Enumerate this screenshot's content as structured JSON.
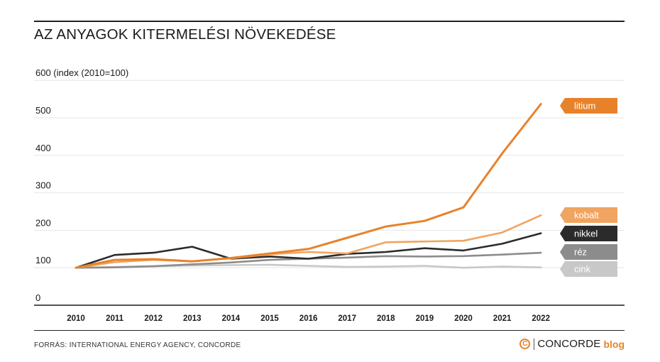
{
  "header": {
    "title": "AZ ANYAGOK KITERMELÉSI NÖVEKEDÉSE"
  },
  "footer": {
    "source": "FORRÁS: INTERNATIONAL ENERGY AGENCY, CONCORDE",
    "brand_logo_glyph": "C",
    "brand_name": "CONCORDE",
    "brand_suffix": "blog"
  },
  "colors": {
    "litium": "#e8822a",
    "kobalt": "#f0a461",
    "nikkel": "#2b2b2b",
    "rez": "#8c8c8c",
    "cink": "#c8c8c8",
    "grid": "#e6e6e6",
    "axis": "#1a1a1a"
  },
  "chart_data": {
    "type": "line",
    "title": "AZ ANYAGOK KITERMELÉSI NÖVEKEDÉSE",
    "ylabel": "(index (2010=100)",
    "xlabel": "",
    "ylim": [
      0,
      600
    ],
    "yticks": [
      0,
      100,
      200,
      300,
      400,
      500,
      600
    ],
    "ytick_labels": [
      "0",
      "100",
      "200",
      "300",
      "400",
      "500",
      "600"
    ],
    "y_top_label_suffix": " (index (2010=100)",
    "grid": true,
    "legend": "right, end-of-line tags",
    "x": [
      "2010",
      "2011",
      "2012",
      "2013",
      "2014",
      "2015",
      "2016",
      "2017",
      "2018",
      "2019",
      "2020",
      "2021",
      "2022"
    ],
    "series": [
      {
        "name": "cink",
        "key": "cink",
        "values": [
          100,
          102,
          104,
          106,
          107,
          108,
          105,
          102,
          103,
          105,
          100,
          103,
          101
        ]
      },
      {
        "name": "réz",
        "key": "rez",
        "values": [
          100,
          101,
          104,
          109,
          114,
          121,
          124,
          127,
          131,
          130,
          131,
          135,
          140
        ]
      },
      {
        "name": "nikkel",
        "key": "nikkel",
        "values": [
          100,
          134,
          140,
          156,
          124,
          130,
          124,
          137,
          142,
          152,
          146,
          164,
          192
        ]
      },
      {
        "name": "kobalt",
        "key": "kobalt",
        "values": [
          100,
          115,
          121,
          117,
          125,
          136,
          142,
          138,
          168,
          170,
          172,
          194,
          240
        ]
      },
      {
        "name": "litium",
        "key": "litium",
        "values": [
          100,
          121,
          123,
          117,
          126,
          138,
          150,
          180,
          210,
          225,
          261,
          405,
          537
        ]
      }
    ]
  }
}
